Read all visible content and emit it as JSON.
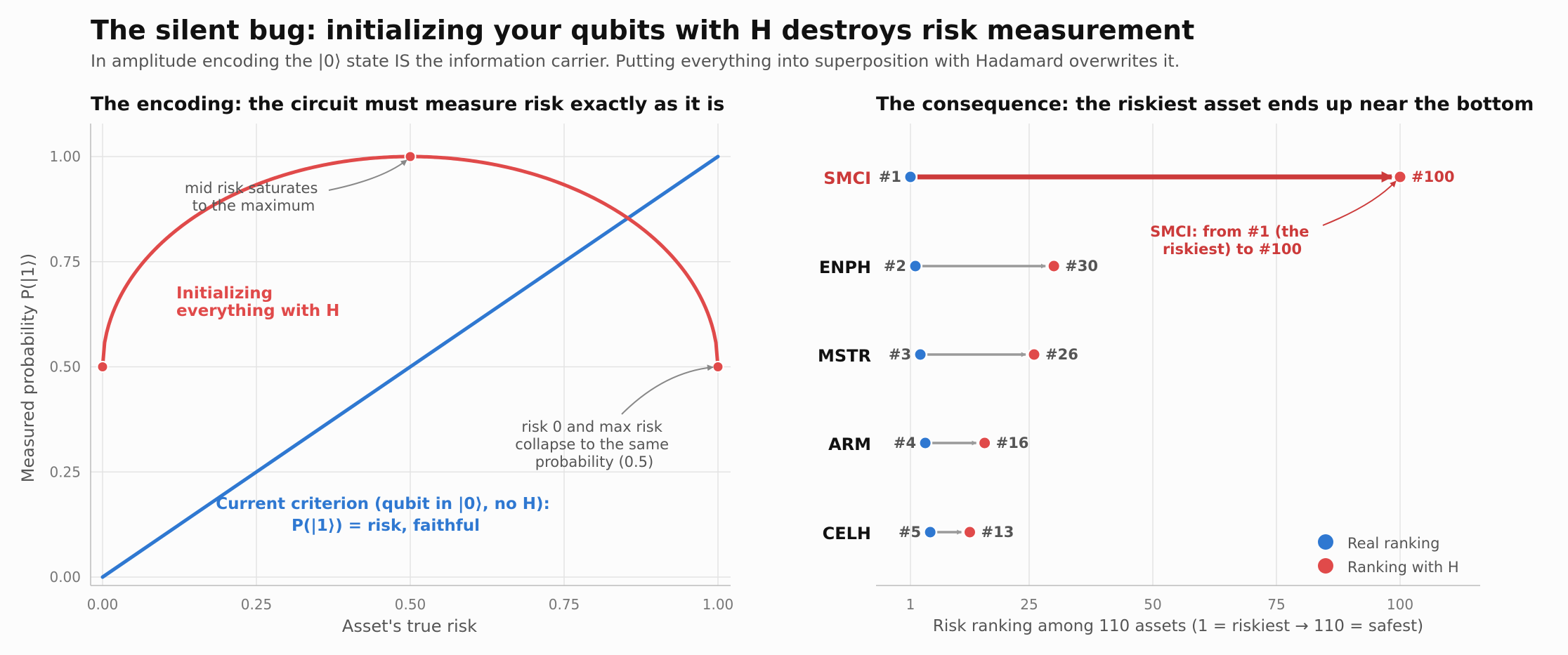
{
  "title": "The silent bug: initializing your qubits with H destroys risk measurement",
  "subtitle": "In amplitude encoding the |0⟩ state IS the information carrier. Putting everything into superposition with Hadamard overwrites it.",
  "colors": {
    "blue": "#2f78d1",
    "red": "#e04a4a",
    "dark_red": "#cc3a3a",
    "gray_arrow": "#9a9a9a",
    "grid": "#e3e3e3"
  },
  "chart_data": [
    {
      "type": "line",
      "title": "The encoding:  the circuit must measure risk exactly as it is",
      "xlabel": "Asset's true risk",
      "ylabel": "Measured probability  P(|1⟩)",
      "xlim": [
        0,
        1
      ],
      "ylim": [
        0,
        1
      ],
      "xticks": [
        "0.00",
        "0.25",
        "0.50",
        "0.75",
        "1.00"
      ],
      "yticks": [
        "0.00",
        "0.25",
        "0.50",
        "0.75",
        "1.00"
      ],
      "grid": true,
      "series": [
        {
          "name": "Current criterion (qubit in |0⟩, no H):",
          "name_line2": "P(|1⟩) = risk, faithful",
          "function": "P = risk",
          "x": [
            0,
            1
          ],
          "y": [
            0,
            1
          ]
        },
        {
          "name": "Initializing",
          "name_line2": "everything with H",
          "function": "P = 0.5 + sqrt(risk*(1-risk))",
          "x": [
            0,
            0.5,
            1
          ],
          "y": [
            0.5,
            1.0,
            0.5
          ]
        }
      ],
      "annotations": [
        {
          "lines": [
            "mid risk saturates",
            "to the maximum"
          ],
          "x": 0.5,
          "y": 1.0
        },
        {
          "lines": [
            "risk 0 and max risk",
            "collapse to the same",
            "probability (0.5)"
          ],
          "x": 1.0,
          "y": 0.5
        }
      ]
    },
    {
      "type": "dot-arrow",
      "title": "The consequence:  the riskiest asset ends up near the bottom",
      "xlabel": "Risk ranking among 110 assets   (1 = riskiest  →  110 = safest)",
      "xlim": [
        -6,
        117
      ],
      "xticks": [
        1,
        25,
        50,
        75,
        100
      ],
      "grid": true,
      "legend": {
        "position": "bottom-right",
        "items": [
          "Real ranking",
          "Ranking with H"
        ]
      },
      "assets": [
        {
          "ticker": "SMCI",
          "real": 1,
          "with_h": 100,
          "real_label": "#1",
          "h_label": "#100",
          "highlight": true
        },
        {
          "ticker": "ENPH",
          "real": 2,
          "with_h": 30,
          "real_label": "#2",
          "h_label": "#30"
        },
        {
          "ticker": "MSTR",
          "real": 3,
          "with_h": 26,
          "real_label": "#3",
          "h_label": "#26"
        },
        {
          "ticker": "ARM",
          "real": 4,
          "with_h": 16,
          "real_label": "#4",
          "h_label": "#16"
        },
        {
          "ticker": "CELH",
          "real": 5,
          "with_h": 13,
          "real_label": "#5",
          "h_label": "#13"
        }
      ],
      "annotation": {
        "lines": [
          "SMCI: from #1 (the",
          "riskiest) to #100"
        ]
      }
    }
  ]
}
